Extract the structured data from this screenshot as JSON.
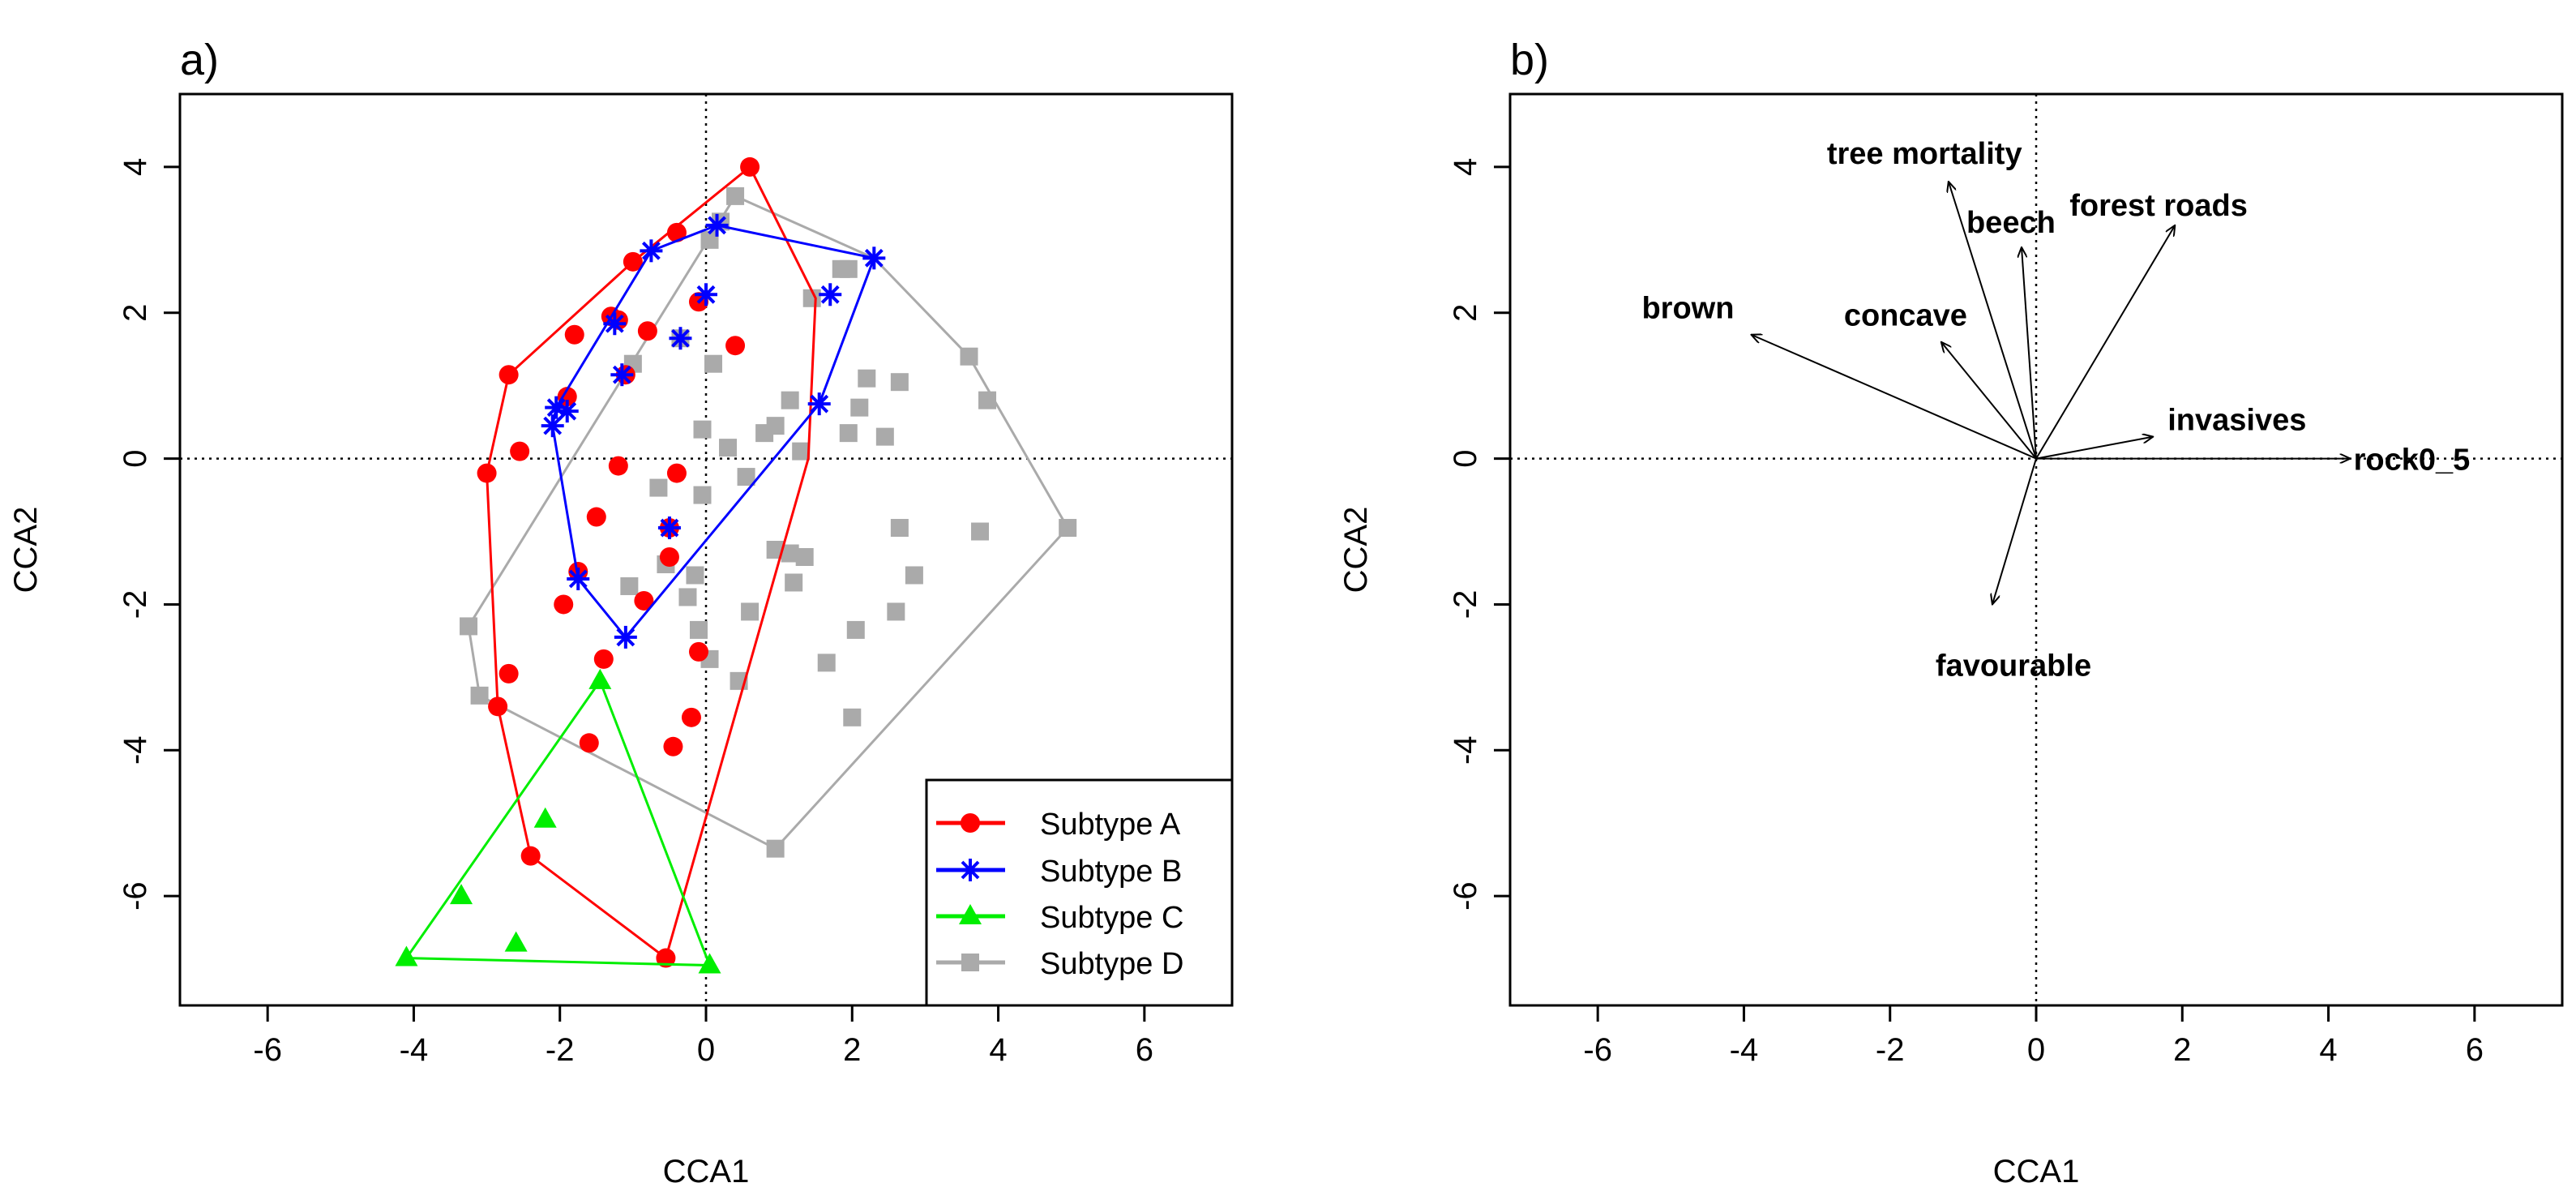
{
  "chart_data": [
    {
      "type": "scatter",
      "panel_label": "a)",
      "xlabel": "CCA1",
      "ylabel": "CCA2",
      "xlim": [
        -7.2,
        7.2
      ],
      "ylim": [
        -7.5,
        5.0
      ],
      "xticks": [
        -6,
        -4,
        -2,
        0,
        2,
        4,
        6
      ],
      "yticks": [
        -6,
        -4,
        -2,
        0,
        2,
        4
      ],
      "xtick_labels": [
        "-6",
        "-4",
        "-2",
        "0",
        "2",
        "4",
        "6"
      ],
      "ytick_labels": [
        "-6",
        "-4",
        "-2",
        "0",
        "2",
        "4"
      ],
      "reference_lines": "dotted lines at x = 0 and y = 0",
      "legend_position": "bottom-right",
      "series": [
        {
          "name": "Subtype A",
          "color": "#ff0000",
          "marker": "circle",
          "points": [
            [
              0.6,
              4.0
            ],
            [
              -0.4,
              3.1
            ],
            [
              -1.0,
              2.7
            ],
            [
              -0.1,
              2.15
            ],
            [
              -1.3,
              1.95
            ],
            [
              -1.2,
              1.9
            ],
            [
              -1.8,
              1.7
            ],
            [
              -0.8,
              1.75
            ],
            [
              0.4,
              1.55
            ],
            [
              -2.7,
              1.15
            ],
            [
              -1.9,
              0.85
            ],
            [
              -1.1,
              1.15
            ],
            [
              -2.55,
              0.1
            ],
            [
              -3.0,
              -0.2
            ],
            [
              -1.2,
              -0.1
            ],
            [
              -0.4,
              -0.2
            ],
            [
              -1.5,
              -0.8
            ],
            [
              -0.5,
              -0.95
            ],
            [
              -1.75,
              -1.55
            ],
            [
              -0.5,
              -1.35
            ],
            [
              -1.95,
              -2.0
            ],
            [
              -0.85,
              -1.95
            ],
            [
              -1.4,
              -2.75
            ],
            [
              -0.1,
              -2.65
            ],
            [
              -2.7,
              -2.95
            ],
            [
              -2.85,
              -3.4
            ],
            [
              -0.2,
              -3.55
            ],
            [
              -1.6,
              -3.9
            ],
            [
              -0.45,
              -3.95
            ],
            [
              -2.4,
              -5.45
            ],
            [
              -0.55,
              -6.85
            ]
          ],
          "hull": [
            [
              0.6,
              4.0
            ],
            [
              1.5,
              2.2
            ],
            [
              1.4,
              0.0
            ],
            [
              -0.55,
              -6.85
            ],
            [
              -2.4,
              -5.45
            ],
            [
              -2.85,
              -3.4
            ],
            [
              -3.0,
              -0.2
            ],
            [
              -2.7,
              1.15
            ],
            [
              -1.0,
              2.7
            ]
          ]
        },
        {
          "name": "Subtype B",
          "color": "#0000ff",
          "marker": "star",
          "points": [
            [
              -0.75,
              2.85
            ],
            [
              0.15,
              3.2
            ],
            [
              2.3,
              2.75
            ],
            [
              1.7,
              2.25
            ],
            [
              0.0,
              2.25
            ],
            [
              -1.25,
              1.85
            ],
            [
              -0.35,
              1.65
            ],
            [
              -1.15,
              1.15
            ],
            [
              -2.05,
              0.7
            ],
            [
              -1.9,
              0.65
            ],
            [
              -2.1,
              0.45
            ],
            [
              1.55,
              0.75
            ],
            [
              -0.5,
              -0.95
            ],
            [
              -1.75,
              -1.65
            ],
            [
              -1.1,
              -2.45
            ]
          ],
          "hull": [
            [
              0.15,
              3.2
            ],
            [
              2.3,
              2.75
            ],
            [
              1.55,
              0.75
            ],
            [
              -1.1,
              -2.45
            ],
            [
              -1.75,
              -1.65
            ],
            [
              -2.1,
              0.45
            ],
            [
              -2.05,
              0.7
            ],
            [
              -0.75,
              2.85
            ]
          ]
        },
        {
          "name": "Subtype C",
          "color": "#00ee00",
          "marker": "triangle",
          "points": [
            [
              -1.45,
              -3.05
            ],
            [
              -2.2,
              -4.95
            ],
            [
              -3.35,
              -6.0
            ],
            [
              -2.6,
              -6.65
            ],
            [
              -4.1,
              -6.85
            ],
            [
              0.05,
              -6.95
            ]
          ],
          "hull": [
            [
              -1.45,
              -3.05
            ],
            [
              0.05,
              -6.95
            ],
            [
              -4.1,
              -6.85
            ]
          ]
        },
        {
          "name": "Subtype D",
          "color": "#aaaaaa",
          "marker": "square",
          "points": [
            [
              0.4,
              3.6
            ],
            [
              0.2,
              3.25
            ],
            [
              0.05,
              3.0
            ],
            [
              1.85,
              2.6
            ],
            [
              1.95,
              2.6
            ],
            [
              1.45,
              2.2
            ],
            [
              -0.35,
              1.65
            ],
            [
              3.6,
              1.4
            ],
            [
              -1.0,
              1.3
            ],
            [
              0.1,
              1.3
            ],
            [
              2.2,
              1.1
            ],
            [
              2.65,
              1.05
            ],
            [
              3.85,
              0.8
            ],
            [
              1.15,
              0.8
            ],
            [
              2.1,
              0.7
            ],
            [
              0.95,
              0.45
            ],
            [
              0.8,
              0.35
            ],
            [
              -0.05,
              0.4
            ],
            [
              1.95,
              0.35
            ],
            [
              2.45,
              0.3
            ],
            [
              0.3,
              0.15
            ],
            [
              1.3,
              0.1
            ],
            [
              -0.05,
              -0.5
            ],
            [
              -0.65,
              -0.4
            ],
            [
              0.55,
              -0.25
            ],
            [
              2.65,
              -0.95
            ],
            [
              3.75,
              -1.0
            ],
            [
              4.95,
              -0.95
            ],
            [
              0.95,
              -1.25
            ],
            [
              1.15,
              -1.3
            ],
            [
              1.35,
              -1.35
            ],
            [
              -0.55,
              -1.45
            ],
            [
              -0.15,
              -1.6
            ],
            [
              1.2,
              -1.7
            ],
            [
              2.85,
              -1.6
            ],
            [
              -1.05,
              -1.75
            ],
            [
              -0.25,
              -1.9
            ],
            [
              0.6,
              -2.1
            ],
            [
              2.6,
              -2.1
            ],
            [
              -3.25,
              -2.3
            ],
            [
              -0.1,
              -2.35
            ],
            [
              2.05,
              -2.35
            ],
            [
              0.05,
              -2.75
            ],
            [
              1.65,
              -2.8
            ],
            [
              0.45,
              -3.05
            ],
            [
              -3.1,
              -3.25
            ],
            [
              2.0,
              -3.55
            ],
            [
              0.95,
              -5.35
            ]
          ],
          "hull": [
            [
              0.4,
              3.6
            ],
            [
              2.3,
              2.75
            ],
            [
              3.6,
              1.4
            ],
            [
              4.95,
              -0.95
            ],
            [
              0.95,
              -5.35
            ],
            [
              -3.1,
              -3.25
            ],
            [
              -3.25,
              -2.3
            ]
          ]
        }
      ]
    },
    {
      "type": "biplot",
      "panel_label": "b)",
      "xlabel": "CCA1",
      "ylabel": "CCA2",
      "xlim": [
        -7.2,
        7.2
      ],
      "ylim": [
        -7.5,
        5.0
      ],
      "xticks": [
        -6,
        -4,
        -2,
        0,
        2,
        4,
        6
      ],
      "yticks": [
        -6,
        -4,
        -2,
        0,
        2,
        4
      ],
      "xtick_labels": [
        "-6",
        "-4",
        "-2",
        "0",
        "2",
        "4",
        "6"
      ],
      "ytick_labels": [
        "-6",
        "-4",
        "-2",
        "0",
        "2",
        "4"
      ],
      "reference_lines": "dotted lines at x = 0 and y = 0",
      "arrows": [
        {
          "label": "tree mortality",
          "x": -1.2,
          "y": 3.8
        },
        {
          "label": "beech",
          "x": -0.2,
          "y": 2.9
        },
        {
          "label": "forest roads",
          "x": 1.9,
          "y": 3.2
        },
        {
          "label": "brown",
          "x": -3.9,
          "y": 1.7
        },
        {
          "label": "concave",
          "x": -1.3,
          "y": 1.6
        },
        {
          "label": "invasives",
          "x": 1.6,
          "y": 0.3
        },
        {
          "label": "rock0_5",
          "x": 4.3,
          "y": 0.0
        },
        {
          "label": "favourable",
          "x": -0.6,
          "y": -2.0
        }
      ]
    }
  ]
}
